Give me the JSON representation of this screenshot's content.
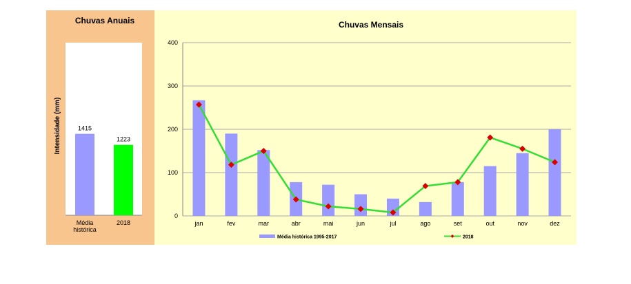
{
  "chart_data": [
    {
      "type": "bar",
      "title": "Chuvas Anuais",
      "ylabel": "Intensidade (mm)",
      "categories": [
        [
          "Média",
          "histórica"
        ],
        [
          "2018"
        ]
      ],
      "values": [
        1415,
        1223
      ],
      "data_labels": [
        "1415",
        "1223"
      ],
      "colors": [
        "#9999ff",
        "#00ff00"
      ],
      "ylim": [
        0,
        3000
      ]
    },
    {
      "type": "bar+line",
      "title": "Chuvas Mensais",
      "categories": [
        "jan",
        "fev",
        "mar",
        "abr",
        "mai",
        "jun",
        "jul",
        "ago",
        "set",
        "out",
        "nov",
        "dez"
      ],
      "ylim": [
        0,
        400
      ],
      "yticks": [
        0,
        100,
        200,
        300,
        400
      ],
      "grid": true,
      "legend": "bottom",
      "series": [
        {
          "name": "Média histórica 1995-2017",
          "type": "bar",
          "color": "#9999ff",
          "values": [
            267,
            190,
            152,
            78,
            72,
            50,
            40,
            32,
            78,
            115,
            145,
            200
          ]
        },
        {
          "name": "2018",
          "type": "line",
          "color": "#33dd33",
          "marker_color": "#dd0000",
          "values": [
            257,
            118,
            150,
            38,
            22,
            16,
            8,
            69,
            78,
            181,
            155,
            124
          ]
        }
      ]
    }
  ]
}
